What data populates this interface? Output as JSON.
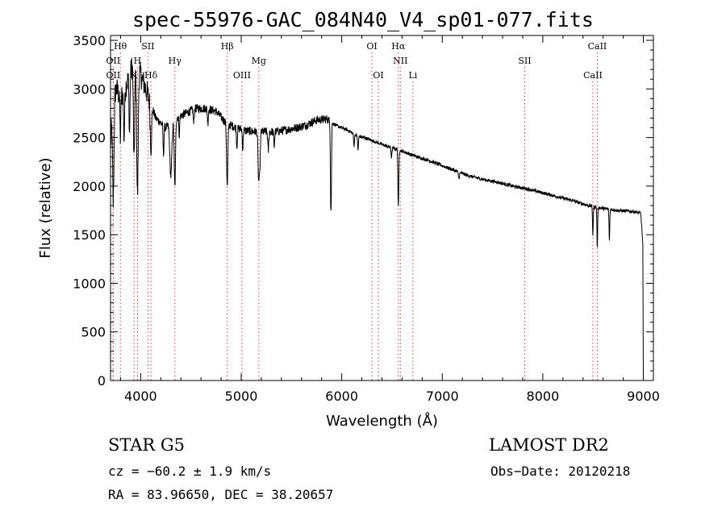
{
  "chart_data": {
    "type": "line",
    "title": "spec-55976-GAC_084N40_V4_sp01-077.fits",
    "xlabel": "Wavelength (Å)",
    "ylabel": "Flux (relative)",
    "xlim": [
      3700,
      9100
    ],
    "ylim": [
      0,
      3550
    ],
    "xticks": [
      4000,
      5000,
      6000,
      7000,
      8000,
      9000
    ],
    "yticks": [
      0,
      500,
      1000,
      1500,
      2000,
      2500,
      3000,
      3500
    ],
    "xtick_labels": [
      "4000",
      "5000",
      "6000",
      "7000",
      "8000",
      "9000"
    ],
    "ytick_labels": [
      "0",
      "500",
      "1000",
      "1500",
      "2000",
      "2500",
      "3000",
      "3500"
    ],
    "line_color": "#000000",
    "marker_color": "#d04040",
    "grid": false,
    "spectrum_continuum": [
      [
        3700,
        2400
      ],
      [
        3720,
        2900
      ],
      [
        3760,
        3000
      ],
      [
        3800,
        2900
      ],
      [
        3860,
        3050
      ],
      [
        3920,
        3250
      ],
      [
        3980,
        3200
      ],
      [
        4050,
        3000
      ],
      [
        4150,
        2700
      ],
      [
        4250,
        2600
      ],
      [
        4350,
        2700
      ],
      [
        4450,
        2750
      ],
      [
        4550,
        2800
      ],
      [
        4650,
        2800
      ],
      [
        4750,
        2770
      ],
      [
        4850,
        2650
      ],
      [
        4950,
        2600
      ],
      [
        5050,
        2570
      ],
      [
        5150,
        2560
      ],
      [
        5250,
        2560
      ],
      [
        5350,
        2560
      ],
      [
        5450,
        2580
      ],
      [
        5550,
        2600
      ],
      [
        5650,
        2630
      ],
      [
        5750,
        2680
      ],
      [
        5850,
        2690
      ],
      [
        5950,
        2620
      ],
      [
        6050,
        2580
      ],
      [
        6150,
        2520
      ],
      [
        6250,
        2490
      ],
      [
        6350,
        2450
      ],
      [
        6450,
        2410
      ],
      [
        6550,
        2380
      ],
      [
        6650,
        2340
      ],
      [
        6750,
        2300
      ],
      [
        6850,
        2270
      ],
      [
        6950,
        2230
      ],
      [
        7100,
        2170
      ],
      [
        7250,
        2110
      ],
      [
        7400,
        2070
      ],
      [
        7550,
        2040
      ],
      [
        7700,
        2000
      ],
      [
        7850,
        1970
      ],
      [
        8000,
        1930
      ],
      [
        8150,
        1890
      ],
      [
        8300,
        1850
      ],
      [
        8450,
        1800
      ],
      [
        8600,
        1770
      ],
      [
        8750,
        1750
      ],
      [
        8900,
        1740
      ],
      [
        8975,
        1720
      ],
      [
        8995,
        1400
      ],
      [
        9000,
        0
      ]
    ],
    "absorption_lines": [
      [
        3727,
        1100,
        10
      ],
      [
        3798,
        400,
        6
      ],
      [
        3835,
        500,
        7
      ],
      [
        3889,
        600,
        7
      ],
      [
        3934,
        1000,
        9
      ],
      [
        3968,
        1300,
        10
      ],
      [
        4102,
        500,
        9
      ],
      [
        4227,
        300,
        6
      ],
      [
        4300,
        550,
        14
      ],
      [
        4340,
        700,
        9
      ],
      [
        4384,
        200,
        5
      ],
      [
        4528,
        150,
        6
      ],
      [
        4668,
        150,
        6
      ],
      [
        4861,
        650,
        9
      ],
      [
        4957,
        200,
        6
      ],
      [
        5015,
        200,
        6
      ],
      [
        5172,
        450,
        8
      ],
      [
        5184,
        400,
        8
      ],
      [
        5269,
        200,
        7
      ],
      [
        5328,
        150,
        6
      ],
      [
        5890,
        700,
        5
      ],
      [
        5896,
        600,
        5
      ],
      [
        6122,
        120,
        6
      ],
      [
        6162,
        150,
        6
      ],
      [
        6495,
        100,
        6
      ],
      [
        6563,
        600,
        6
      ],
      [
        7165,
        60,
        8
      ],
      [
        8498,
        300,
        5
      ],
      [
        8542,
        430,
        5
      ],
      [
        8662,
        330,
        5
      ]
    ],
    "line_markers": [
      {
        "label": "Hθ",
        "x": 3798,
        "row": 1
      },
      {
        "label": "OII",
        "x": 3727,
        "row": 2
      },
      {
        "label": "OII",
        "x": 3727,
        "row": 3
      },
      {
        "label": "SII",
        "x": 4072,
        "row": 1
      },
      {
        "label": "H",
        "x": 3968,
        "row": 2
      },
      {
        "label": "K",
        "x": 3934,
        "row": 3
      },
      {
        "label": "Hδ",
        "x": 4102,
        "row": 3
      },
      {
        "label": "Hγ",
        "x": 4340,
        "row": 2
      },
      {
        "label": "Hβ",
        "x": 4861,
        "row": 1
      },
      {
        "label": "OIII",
        "x": 5007,
        "row": 3
      },
      {
        "label": "Mg",
        "x": 5175,
        "row": 2
      },
      {
        "label": "OI",
        "x": 6300,
        "row": 1
      },
      {
        "label": "OI",
        "x": 6364,
        "row": 3
      },
      {
        "label": "Hα",
        "x": 6563,
        "row": 1
      },
      {
        "label": "NII",
        "x": 6583,
        "row": 2
      },
      {
        "label": "Li",
        "x": 6708,
        "row": 3
      },
      {
        "label": "SII",
        "x": 7820,
        "row": 2
      },
      {
        "label": "CaII",
        "x": 8542,
        "row": 1
      },
      {
        "label": "CaII",
        "x": 8498,
        "row": 3
      }
    ]
  },
  "info": {
    "star_line": "STAR    G5",
    "survey": "LAMOST DR2",
    "cz": "cz = −60.2 ± 1.9 km/s",
    "obs_date": "Obs−Date: 20120218",
    "coords": "RA =  83.96650, DEC =  38.20657"
  }
}
